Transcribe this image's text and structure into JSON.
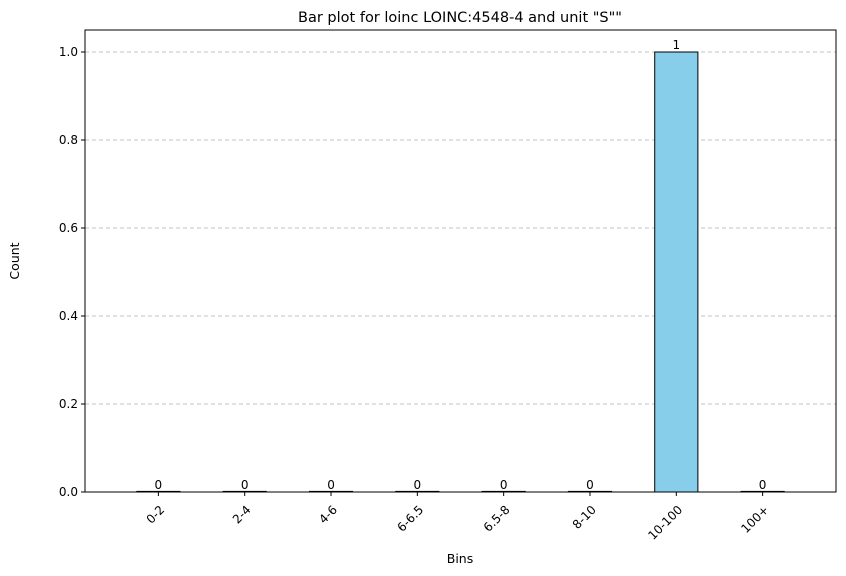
{
  "chart_data": {
    "type": "bar",
    "title": "Bar plot for loinc LOINC:4548-4 and unit \"S\"\"",
    "xlabel": "Bins",
    "ylabel": "Count",
    "categories": [
      "0-2",
      "2-4",
      "4-6",
      "6-6.5",
      "6.5-8",
      "8-10",
      "10-100",
      "100+"
    ],
    "values": [
      0,
      0,
      0,
      0,
      0,
      0,
      1,
      0
    ],
    "data_labels": [
      "0",
      "0",
      "0",
      "0",
      "0",
      "0",
      "1",
      "0"
    ],
    "ylim": [
      0,
      1.05
    ],
    "yticks": [
      "0.0",
      "0.2",
      "0.4",
      "0.6",
      "0.8",
      "1.0"
    ],
    "grid": "horizontal dashed",
    "bar_color": "#87CEEB",
    "bar_edge_color": "#000000",
    "grid_color": "#b0b0b0"
  }
}
